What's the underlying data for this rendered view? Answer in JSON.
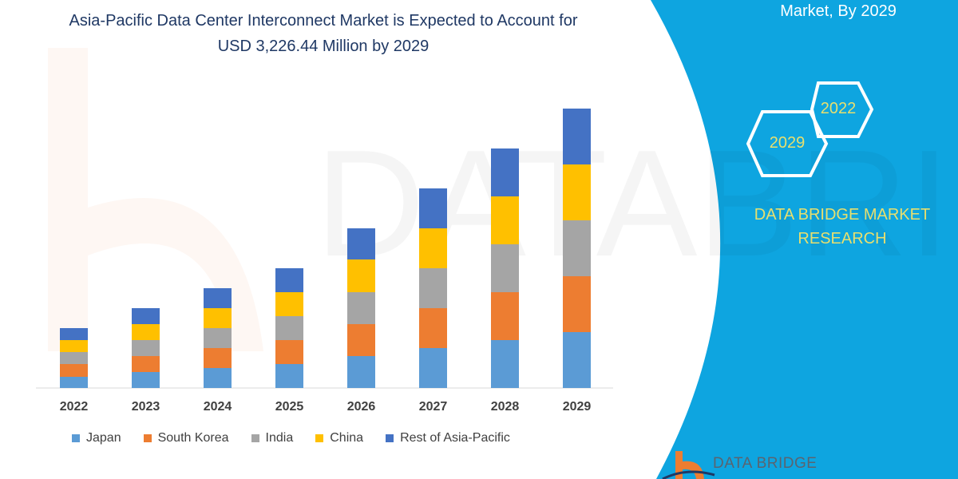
{
  "title_line1": "Asia-Pacific Data Center Interconnect Market is Expected to Account for",
  "title_line2": "USD 3,226.44 Million by 2029",
  "side_panel": {
    "heading": "Market, By 2029",
    "hex_years": [
      "2022",
      "2029"
    ],
    "brand": "DATA BRIDGE MARKET RESEARCH",
    "logo_text": "DATA BRIDGE",
    "color": "#0ea5e0"
  },
  "chart_data": {
    "type": "bar",
    "stacked": true,
    "categories": [
      "2022",
      "2023",
      "2024",
      "2025",
      "2026",
      "2027",
      "2028",
      "2029"
    ],
    "series": [
      {
        "name": "Japan",
        "color": "#5b9bd5",
        "values": [
          14,
          20,
          25,
          30,
          40,
          50,
          60,
          70
        ]
      },
      {
        "name": "South Korea",
        "color": "#ed7d31",
        "values": [
          16,
          20,
          25,
          30,
          40,
          50,
          60,
          70
        ]
      },
      {
        "name": "India",
        "color": "#a5a5a5",
        "values": [
          15,
          20,
          25,
          30,
          40,
          50,
          60,
          70
        ]
      },
      {
        "name": "China",
        "color": "#ffc000",
        "values": [
          15,
          20,
          25,
          30,
          41,
          50,
          60,
          70
        ]
      },
      {
        "name": "Rest of Asia-Pacific",
        "color": "#4472c4",
        "values": [
          15,
          20,
          25,
          30,
          39,
          50,
          60,
          70
        ]
      }
    ],
    "ylim": [
      0,
      352
    ],
    "grid": false,
    "legend": "bottom",
    "xlabel": "",
    "ylabel": ""
  }
}
